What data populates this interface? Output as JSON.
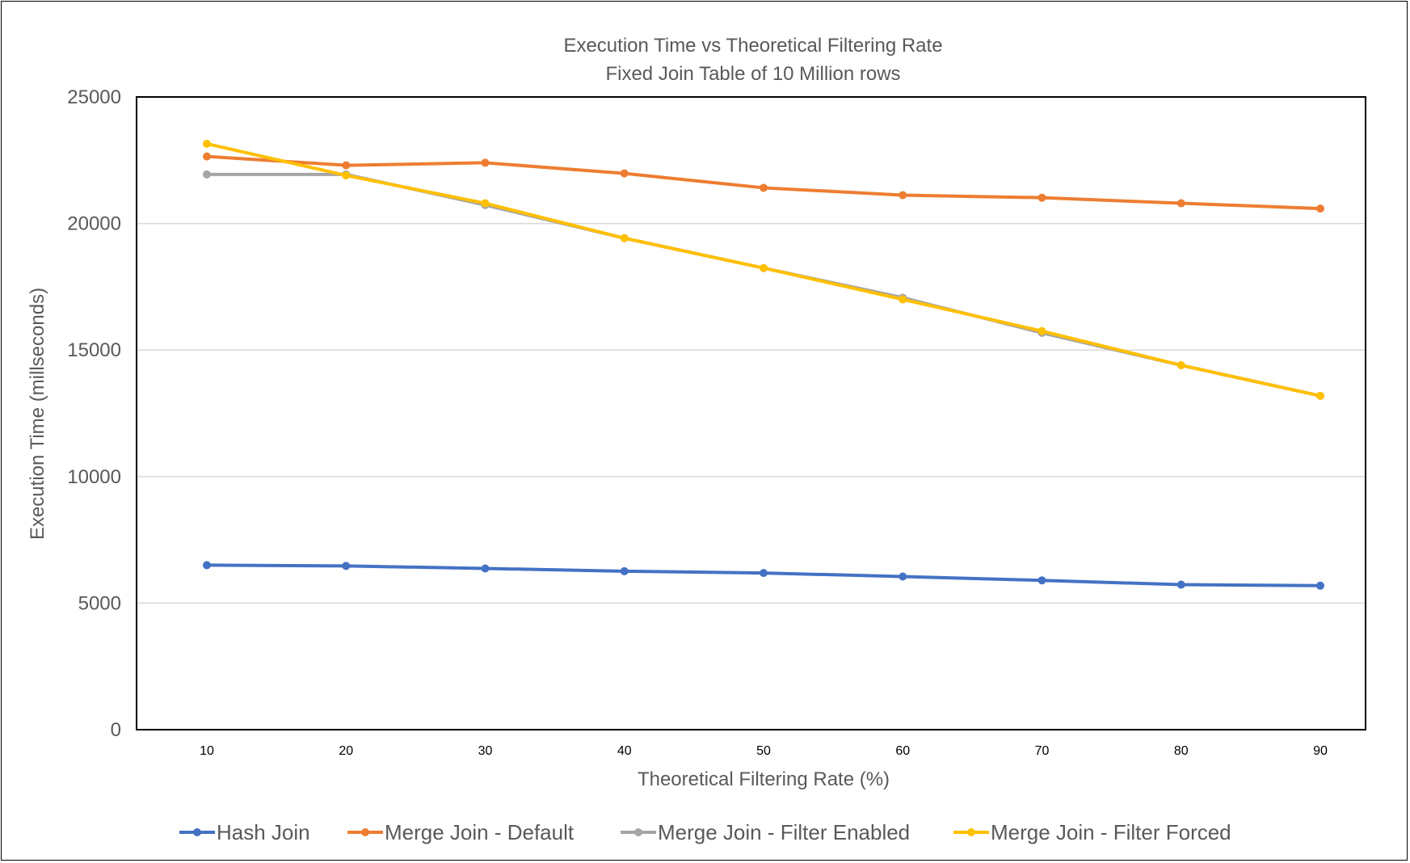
{
  "chart_data": {
    "type": "line",
    "title": "Execution Time vs Theoretical Filtering Rate",
    "subtitle": "Fixed Join Table of 10 Million rows",
    "xlabel": "Theoretical Filtering Rate (%)",
    "ylabel": "Execution Time (millseconds)",
    "categories": [
      "10",
      "20",
      "30",
      "40",
      "50",
      "60",
      "70",
      "80",
      "90"
    ],
    "ylim": [
      0,
      25000
    ],
    "yticks": [
      "0",
      "5000",
      "10000",
      "15000",
      "20000",
      "25000"
    ],
    "grid": true,
    "legend": "bottom",
    "series": [
      {
        "name": "Hash Join",
        "color": "#4472C4",
        "values": [
          6500,
          6470,
          6370,
          6260,
          6190,
          6050,
          5900,
          5730,
          5690
        ]
      },
      {
        "name": "Merge Join - Default",
        "color": "#ED7D31",
        "values": [
          22650,
          22300,
          22400,
          21980,
          21410,
          21120,
          21020,
          20800,
          20590
        ]
      },
      {
        "name": "Merge Join - Filter Enabled",
        "color": "#A5A5A5",
        "values": [
          21940,
          21940,
          20730,
          19420,
          18240,
          17070,
          15680,
          14400,
          13190
        ]
      },
      {
        "name": "Merge Join - Filter Forced",
        "color": "#FFC000",
        "values": [
          23150,
          21900,
          20800,
          19420,
          18240,
          17000,
          15750,
          14400,
          13190
        ]
      }
    ]
  }
}
